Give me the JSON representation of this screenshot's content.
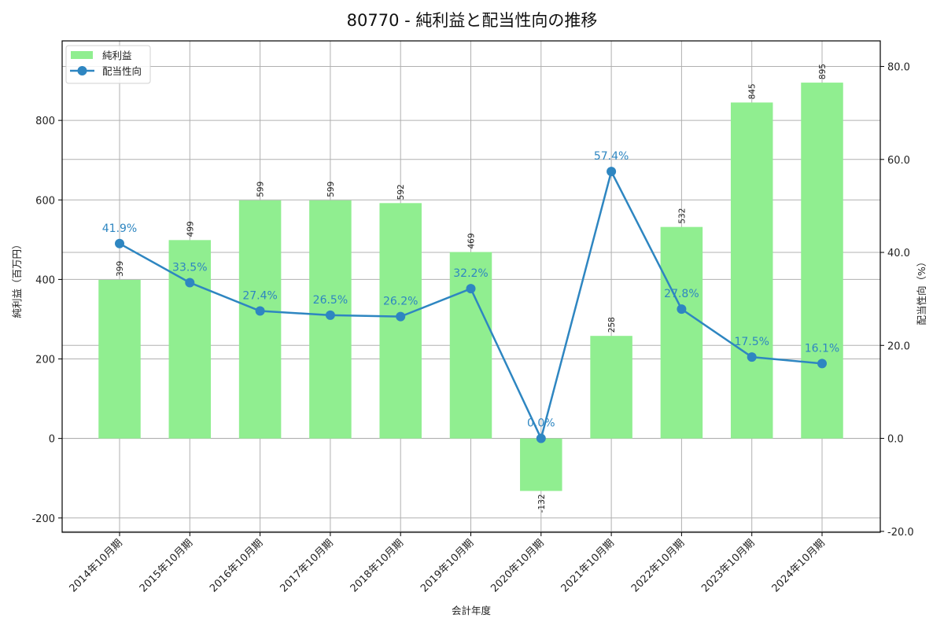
{
  "chart_data": {
    "type": "bar+line",
    "title": "80770 - 純利益と配当性向の推移",
    "xlabel": "会計年度",
    "ylabel_left": "純利益（百万円）",
    "ylabel_right": "配当性向（%）",
    "categories": [
      "2014年10月期",
      "2015年10月期",
      "2016年10月期",
      "2017年10月期",
      "2018年10月期",
      "2019年10月期",
      "2020年10月期",
      "2021年10月期",
      "2022年10月期",
      "2023年10月期",
      "2024年10月期"
    ],
    "series": [
      {
        "name": "純利益",
        "type": "bar",
        "axis": "left",
        "color": "#90ee90",
        "values": [
          399,
          499,
          599,
          599,
          592,
          469,
          -132,
          258,
          532,
          845,
          895
        ]
      },
      {
        "name": "配当性向",
        "type": "line",
        "axis": "right",
        "color": "#2e86c1",
        "values": [
          41.9,
          33.5,
          27.4,
          26.5,
          26.2,
          32.2,
          0.0,
          57.4,
          27.8,
          17.5,
          16.1
        ]
      }
    ],
    "ylim_left": [
      -236,
      1000
    ],
    "ylim_right": [
      -20.2,
      85.5
    ],
    "yticks_left": [
      -200,
      0,
      200,
      400,
      600,
      800
    ],
    "yticks_right": [
      -20.0,
      0.0,
      20.0,
      40.0,
      60.0,
      80.0
    ],
    "grid": true,
    "legend_position": "upper left"
  },
  "labels": {
    "title": "80770 - 純利益と配当性向の推移",
    "xlabel": "会計年度",
    "ylabel_left": "純利益（百万円）",
    "ylabel_right": "配当性向（%）",
    "legend": [
      "純利益",
      "配当性向"
    ]
  }
}
